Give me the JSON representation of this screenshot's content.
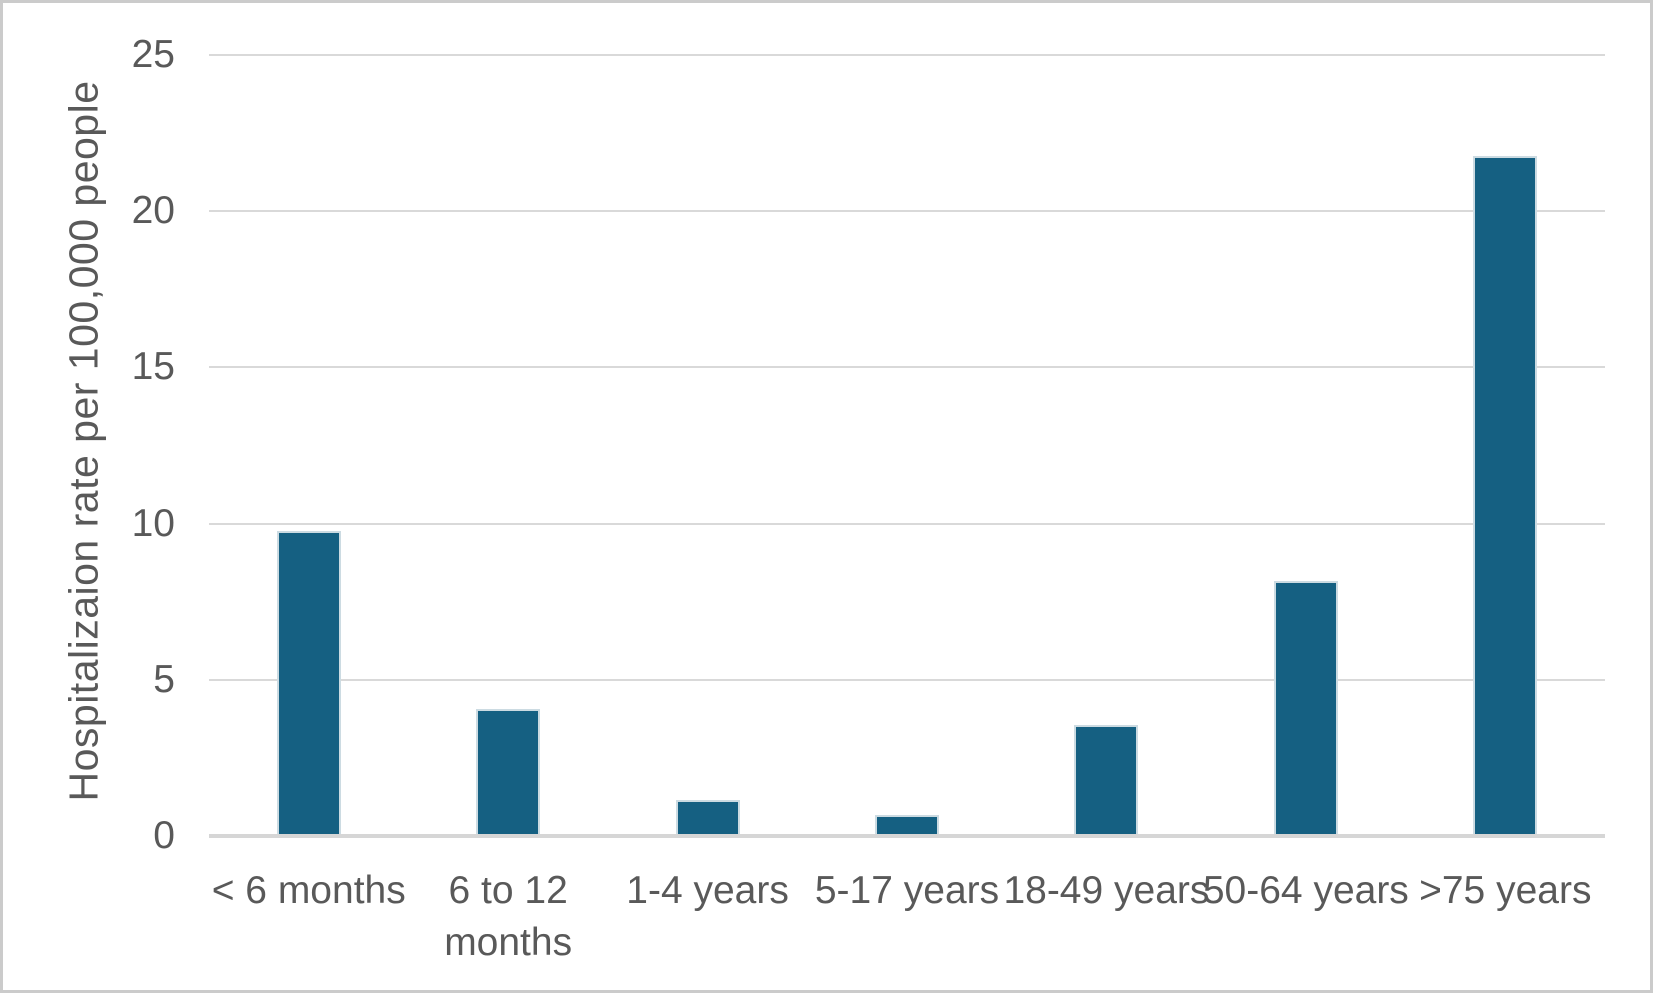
{
  "chart_data": {
    "type": "bar",
    "title": "",
    "categories": [
      "< 6 months",
      "6 to 12 months",
      "1-4 years",
      "5-17 years",
      "18-49 years",
      "50-64 years",
      ">75 years"
    ],
    "values": [
      9.7,
      4.0,
      1.1,
      0.6,
      3.5,
      8.1,
      21.7
    ],
    "xlabel": "",
    "ylabel": "Hospitalizaion rate per 100,000 people",
    "ylim": [
      0,
      25
    ],
    "yticks": [
      0,
      5,
      10,
      15,
      20,
      25
    ],
    "grid": true,
    "legend": "none",
    "colors": {
      "bar_fill": "#156082",
      "bar_outline": "#ccdbe2",
      "gridline": "#d9d9d9",
      "axis_line": "#d6d6d6",
      "text": "#595959",
      "background": "#ffffff",
      "frame_border": "#cbcbcb"
    }
  }
}
